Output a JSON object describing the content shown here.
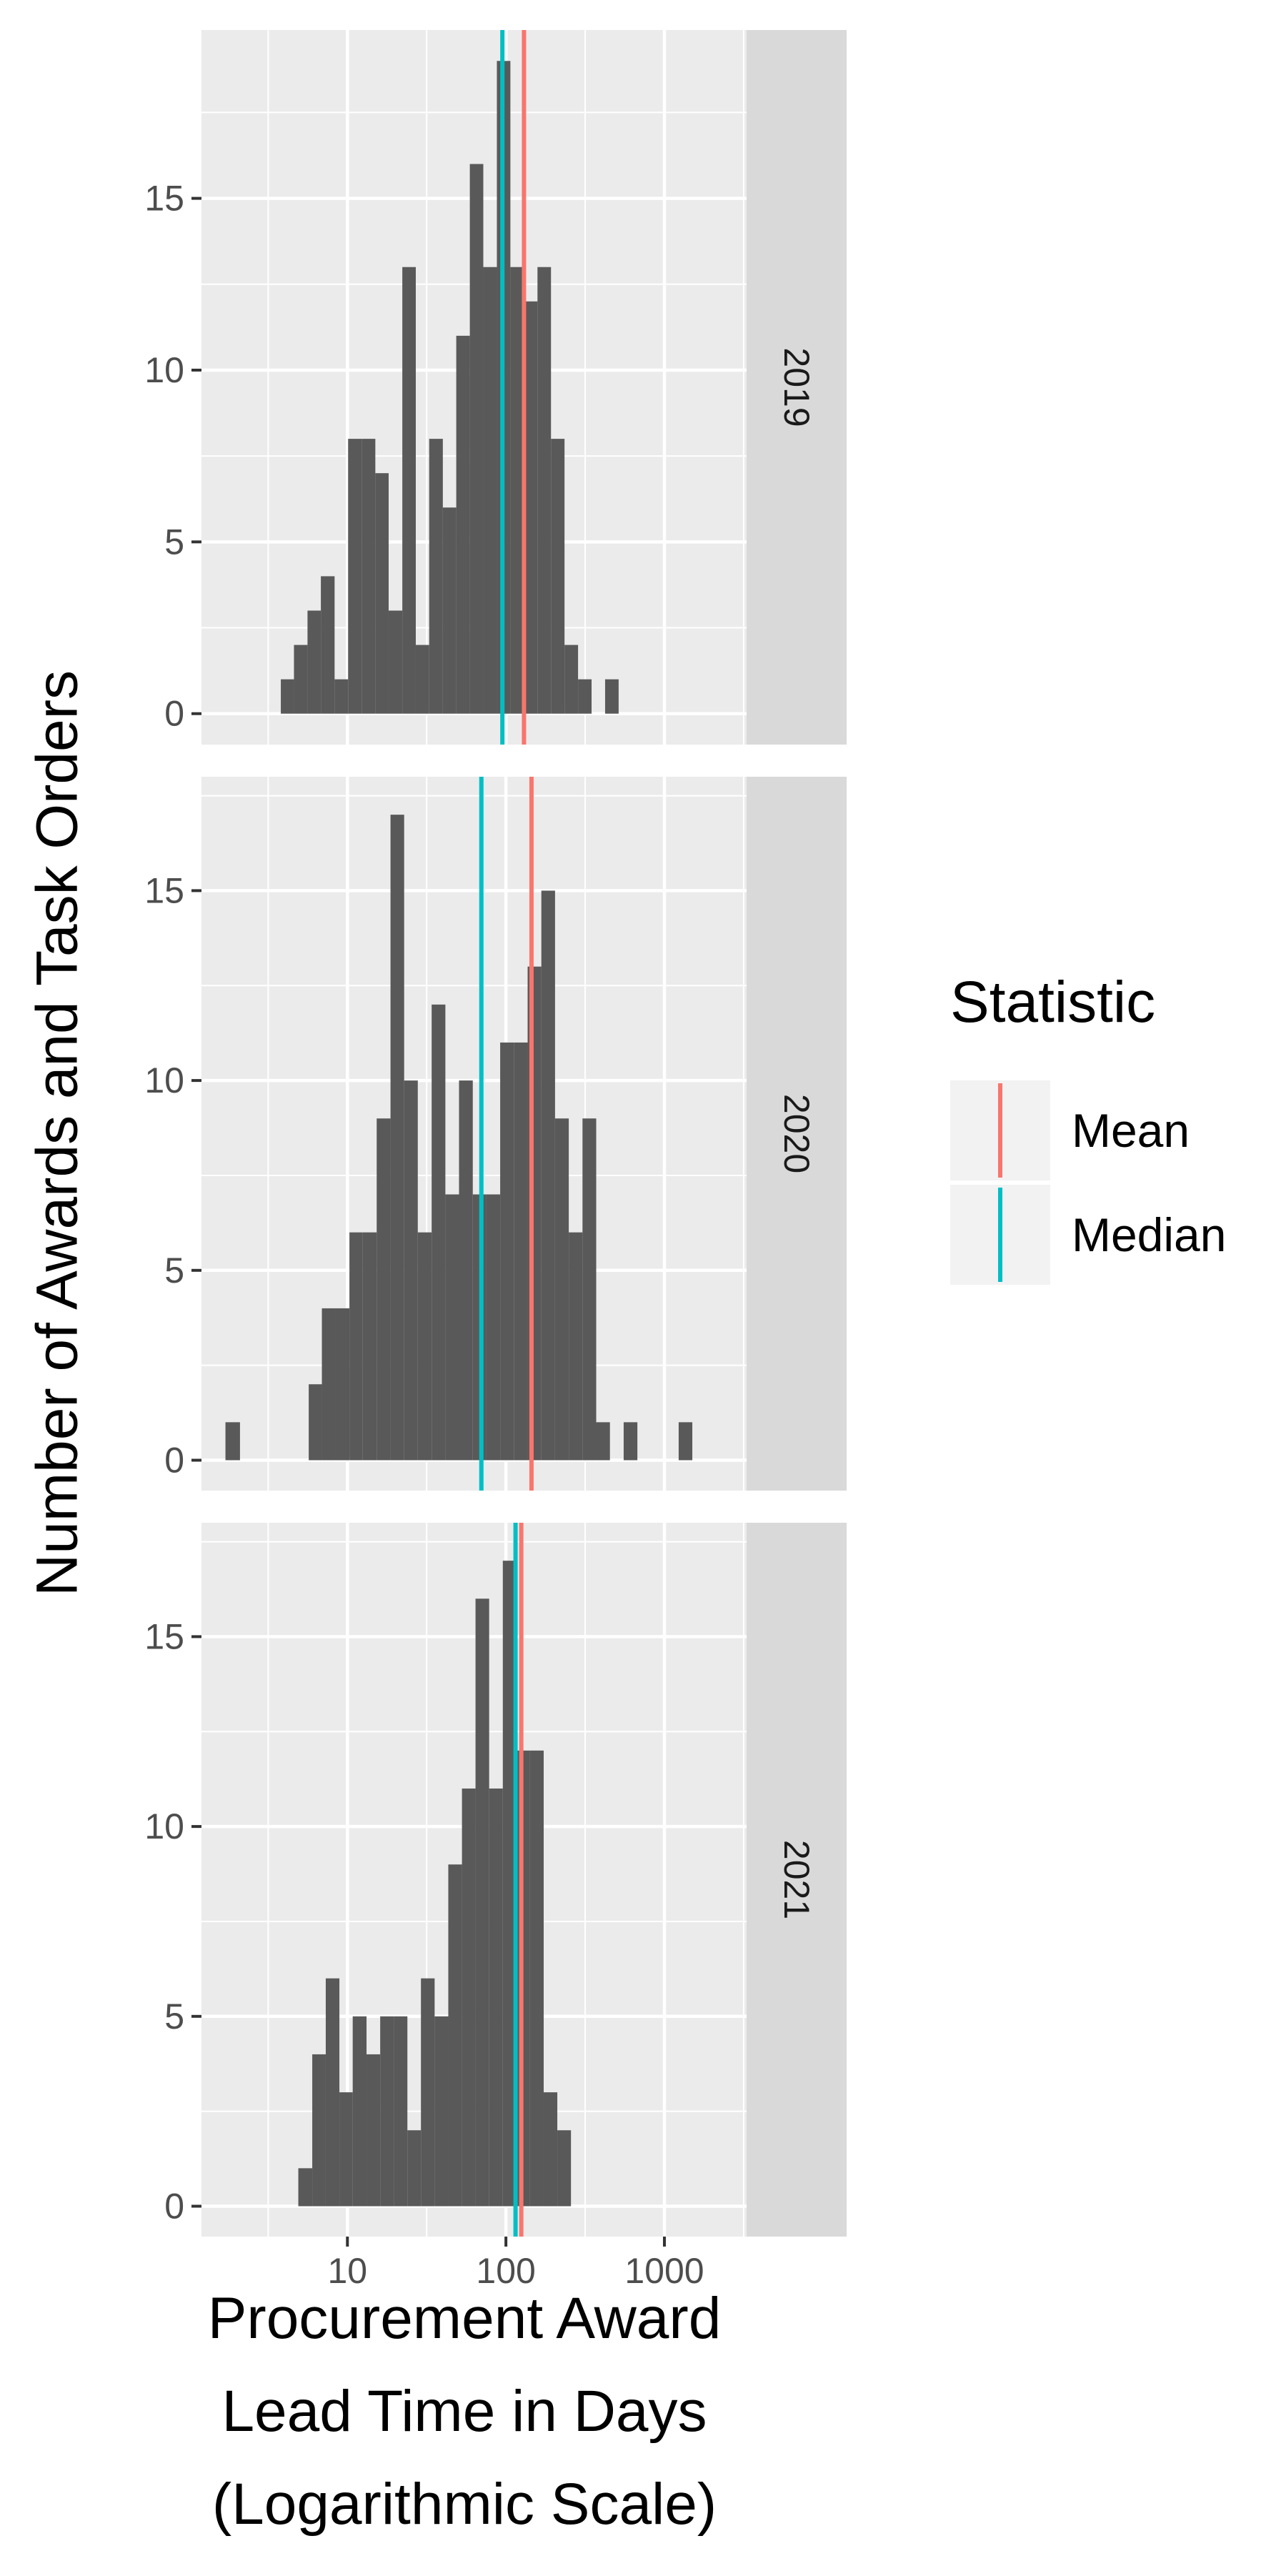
{
  "chart_data": {
    "type": "bar",
    "x_scale": "log",
    "xlabel": [
      "Procurement Award",
      "Lead Time in Days",
      "(Logarithmic Scale)"
    ],
    "ylabel": "Number of Awards and Task Orders",
    "x_range": [
      1.2,
      3300
    ],
    "x_ticks": [
      10,
      100,
      1000
    ],
    "x_tick_labels": [
      "10",
      "100",
      "1000"
    ],
    "y_ticks": [
      0,
      5,
      10,
      15
    ],
    "y_tick_labels": [
      "0",
      "5",
      "10",
      "15"
    ],
    "grid": true,
    "legend": {
      "title": "Statistic",
      "position": "right",
      "items": [
        {
          "label": "Mean",
          "color": "#F8766D"
        },
        {
          "label": "Median",
          "color": "#00BFC4"
        }
      ]
    },
    "bar_color": "#595959",
    "panel_background": "#EBEBEB",
    "strip_background": "#D9D9D9",
    "facets": [
      {
        "label": "2019",
        "ylim": [
          -0.9,
          19.9
        ],
        "mean": 130,
        "median": 95,
        "bins": [
          {
            "x0": 3.8,
            "x1": 4.6,
            "count": 1
          },
          {
            "x0": 4.6,
            "x1": 5.6,
            "count": 2
          },
          {
            "x0": 5.6,
            "x1": 6.8,
            "count": 3
          },
          {
            "x0": 6.8,
            "x1": 8.3,
            "count": 4
          },
          {
            "x0": 8.3,
            "x1": 10.1,
            "count": 1
          },
          {
            "x0": 10.1,
            "x1": 12.3,
            "count": 8
          },
          {
            "x0": 12.3,
            "x1": 15.0,
            "count": 8
          },
          {
            "x0": 15.0,
            "x1": 18.2,
            "count": 7
          },
          {
            "x0": 18.2,
            "x1": 22.2,
            "count": 3
          },
          {
            "x0": 22.2,
            "x1": 27.0,
            "count": 13
          },
          {
            "x0": 27.0,
            "x1": 32.8,
            "count": 2
          },
          {
            "x0": 32.8,
            "x1": 40.0,
            "count": 8
          },
          {
            "x0": 40.0,
            "x1": 48.6,
            "count": 6
          },
          {
            "x0": 48.6,
            "x1": 59.2,
            "count": 11
          },
          {
            "x0": 59.2,
            "x1": 72.0,
            "count": 16
          },
          {
            "x0": 72.0,
            "x1": 87.7,
            "count": 13
          },
          {
            "x0": 87.7,
            "x1": 106.7,
            "count": 19
          },
          {
            "x0": 106.7,
            "x1": 129.9,
            "count": 13
          },
          {
            "x0": 129.9,
            "x1": 158.2,
            "count": 12
          },
          {
            "x0": 158.2,
            "x1": 192.5,
            "count": 13
          },
          {
            "x0": 192.5,
            "x1": 234.3,
            "count": 8
          },
          {
            "x0": 234.3,
            "x1": 285.2,
            "count": 2
          },
          {
            "x0": 285.2,
            "x1": 347.1,
            "count": 1
          },
          {
            "x0": 422.5,
            "x1": 514.2,
            "count": 1
          }
        ]
      },
      {
        "label": "2020",
        "ylim": [
          -0.8,
          18.0
        ],
        "mean": 145,
        "median": 70,
        "bins": [
          {
            "x0": 1.7,
            "x1": 2.1,
            "count": 1
          },
          {
            "x0": 5.7,
            "x1": 6.9,
            "count": 2
          },
          {
            "x0": 6.9,
            "x1": 8.4,
            "count": 4
          },
          {
            "x0": 8.4,
            "x1": 10.3,
            "count": 4
          },
          {
            "x0": 10.3,
            "x1": 12.5,
            "count": 6
          },
          {
            "x0": 12.5,
            "x1": 15.3,
            "count": 6
          },
          {
            "x0": 15.3,
            "x1": 18.7,
            "count": 9
          },
          {
            "x0": 18.7,
            "x1": 22.8,
            "count": 17
          },
          {
            "x0": 22.8,
            "x1": 27.8,
            "count": 10
          },
          {
            "x0": 27.8,
            "x1": 34.0,
            "count": 6
          },
          {
            "x0": 34.0,
            "x1": 41.5,
            "count": 12
          },
          {
            "x0": 41.5,
            "x1": 50.6,
            "count": 7
          },
          {
            "x0": 50.6,
            "x1": 61.8,
            "count": 10
          },
          {
            "x0": 61.8,
            "x1": 75.4,
            "count": 7
          },
          {
            "x0": 75.4,
            "x1": 92.0,
            "count": 7
          },
          {
            "x0": 92.0,
            "x1": 112.3,
            "count": 11
          },
          {
            "x0": 112.3,
            "x1": 137.1,
            "count": 11
          },
          {
            "x0": 137.1,
            "x1": 167.3,
            "count": 13
          },
          {
            "x0": 167.3,
            "x1": 204.2,
            "count": 15
          },
          {
            "x0": 204.2,
            "x1": 249.2,
            "count": 9
          },
          {
            "x0": 249.2,
            "x1": 304.2,
            "count": 6
          },
          {
            "x0": 304.2,
            "x1": 371.3,
            "count": 9
          },
          {
            "x0": 371.3,
            "x1": 453.2,
            "count": 1
          },
          {
            "x0": 553.2,
            "x1": 675.2,
            "count": 1
          },
          {
            "x0": 1230,
            "x1": 1500,
            "count": 1
          }
        ]
      },
      {
        "label": "2021",
        "ylim": [
          -0.8,
          18.0
        ],
        "mean": 125,
        "median": 115,
        "bins": [
          {
            "x0": 4.9,
            "x1": 6.0,
            "count": 1
          },
          {
            "x0": 6.0,
            "x1": 7.3,
            "count": 4
          },
          {
            "x0": 7.3,
            "x1": 8.9,
            "count": 6
          },
          {
            "x0": 8.9,
            "x1": 10.8,
            "count": 3
          },
          {
            "x0": 10.8,
            "x1": 13.2,
            "count": 5
          },
          {
            "x0": 13.2,
            "x1": 16.1,
            "count": 4
          },
          {
            "x0": 16.1,
            "x1": 19.6,
            "count": 5
          },
          {
            "x0": 19.6,
            "x1": 23.9,
            "count": 5
          },
          {
            "x0": 23.9,
            "x1": 29.1,
            "count": 2
          },
          {
            "x0": 29.1,
            "x1": 35.5,
            "count": 6
          },
          {
            "x0": 35.5,
            "x1": 43.3,
            "count": 5
          },
          {
            "x0": 43.3,
            "x1": 52.8,
            "count": 9
          },
          {
            "x0": 52.8,
            "x1": 64.3,
            "count": 11
          },
          {
            "x0": 64.3,
            "x1": 78.4,
            "count": 16
          },
          {
            "x0": 78.4,
            "x1": 95.6,
            "count": 11
          },
          {
            "x0": 95.6,
            "x1": 116.5,
            "count": 17
          },
          {
            "x0": 116.5,
            "x1": 142.0,
            "count": 12
          },
          {
            "x0": 142.0,
            "x1": 173.1,
            "count": 12
          },
          {
            "x0": 173.1,
            "x1": 211.0,
            "count": 3
          },
          {
            "x0": 211.0,
            "x1": 257.3,
            "count": 2
          }
        ]
      }
    ]
  }
}
